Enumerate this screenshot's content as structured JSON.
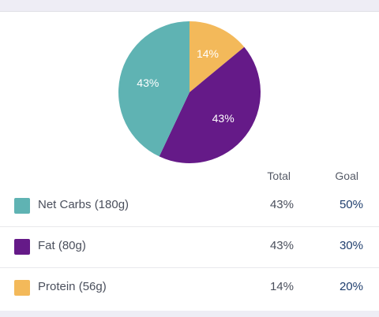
{
  "chart_data": {
    "type": "pie",
    "slices": [
      {
        "label": "Protein (56g)",
        "value": 14,
        "display": "14%",
        "color": "#f3b95a"
      },
      {
        "label": "Fat (80g)",
        "value": 43,
        "display": "43%",
        "color": "#651a88"
      },
      {
        "label": "Net Carbs (180g)",
        "value": 43,
        "display": "43%",
        "color": "#5fb3b3"
      }
    ],
    "title": "",
    "legend": "none"
  },
  "table": {
    "headers": {
      "total": "Total",
      "goal": "Goal"
    },
    "rows": [
      {
        "label": "Net Carbs (180g)",
        "total": "43%",
        "goal": "50%",
        "color": "#5fb3b3"
      },
      {
        "label": "Fat (80g)",
        "total": "43%",
        "goal": "30%",
        "color": "#651a88"
      },
      {
        "label": "Protein (56g)",
        "total": "14%",
        "goal": "20%",
        "color": "#f3b95a"
      }
    ]
  }
}
